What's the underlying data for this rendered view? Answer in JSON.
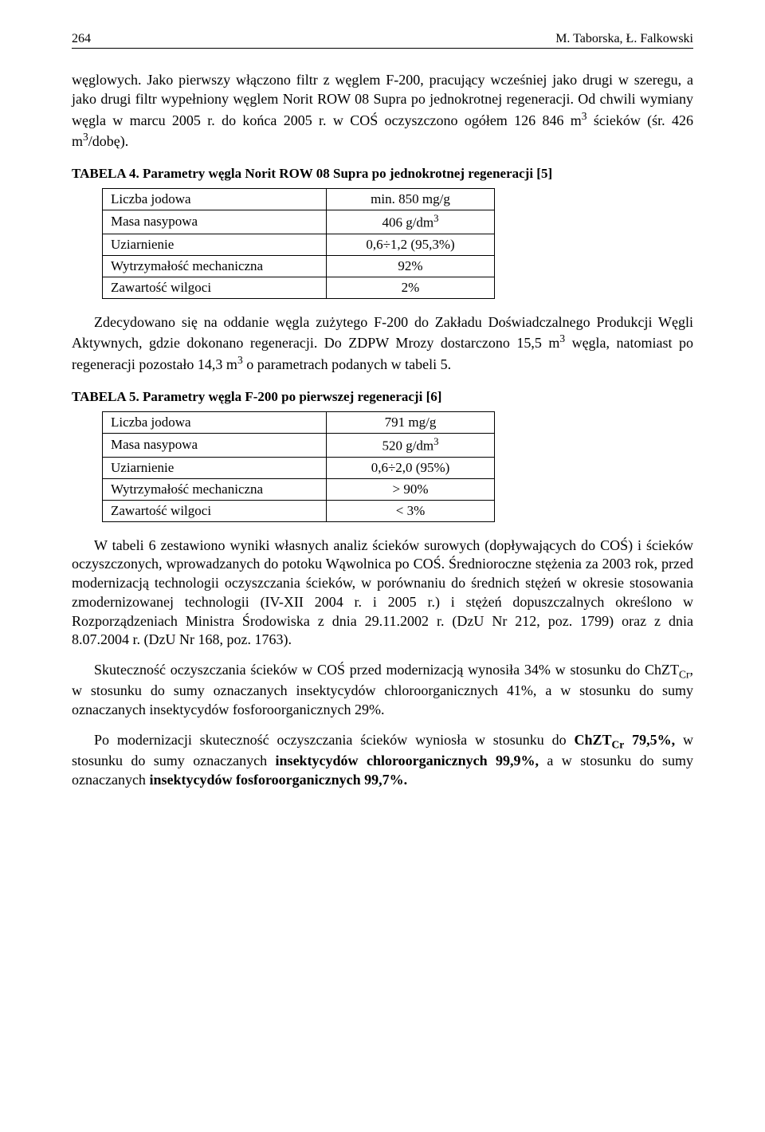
{
  "header": {
    "page_number": "264",
    "authors": "M. Taborska, Ł. Falkowski"
  },
  "p1": "węglowych. Jako pierwszy włączono filtr z węglem F-200, pracujący wcześniej jako drugi w szeregu, a jako drugi filtr wypełniony węglem Norit ROW 08 Supra po jednokrotnej regeneracji. Od chwili wymiany węgla w marcu 2005 r. do końca 2005 r. w COŚ oczyszczono ogółem 126 846 m",
  "p1_sup": "3",
  "p1_tail": " ścieków (śr. 426 m",
  "p1_sup2": "3",
  "p1_tail2": "/dobę).",
  "table4": {
    "caption": "TABELA 4. Parametry węgla Norit ROW 08 Supra po jednokrotnej regeneracji [5]",
    "rows": [
      {
        "label": "Liczba jodowa",
        "value": "min. 850 mg/g"
      },
      {
        "label": "Masa nasypowa",
        "value_pre": "406  g/dm",
        "value_sup": "3"
      },
      {
        "label": "Uziarnienie",
        "value": "0,6÷1,2 (95,3%)"
      },
      {
        "label": "Wytrzymałość mechaniczna",
        "value": "92%"
      },
      {
        "label": "Zawartość wilgoci",
        "value": "2%"
      }
    ]
  },
  "p2_a": "Zdecydowano się na oddanie węgla zużytego F-200 do Zakładu Doświadczalnego Produkcji Węgli Aktywnych, gdzie dokonano regeneracji. Do ZDPW Mrozy dostarczono 15,5 m",
  "p2_sup1": "3",
  "p2_b": " węgla, natomiast po regeneracji pozostało 14,3 m",
  "p2_sup2": "3",
  "p2_c": " o parametrach podanych w tabeli 5.",
  "table5": {
    "caption": "TABELA 5. Parametry węgla F-200 po pierwszej regeneracji [6]",
    "rows": [
      {
        "label": "Liczba jodowa",
        "value": "791 mg/g"
      },
      {
        "label": "Masa nasypowa",
        "value_pre": "520  g/dm",
        "value_sup": "3"
      },
      {
        "label": "Uziarnienie",
        "value": "0,6÷2,0 (95%)"
      },
      {
        "label": "Wytrzymałość mechaniczna",
        "value": "> 90%"
      },
      {
        "label": "Zawartość wilgoci",
        "value": "< 3%"
      }
    ]
  },
  "p3": "W tabeli 6 zestawiono wyniki własnych analiz ścieków surowych (dopływających do COŚ) i ścieków oczyszczonych, wprowadzanych do potoku Wąwolnica po COŚ. Średnioroczne stężenia za 2003 rok, przed modernizacją technologii oczyszczania ścieków, w porównaniu do średnich stężeń w okresie stosowania zmodernizowanej technologii (IV-XII 2004 r. i 2005 r.) i stężeń dopuszczalnych określono w Rozporządzeniach Ministra Środowiska z dnia 29.11.2002 r. (DzU Nr 212, poz. 1799) oraz z dnia 8.07.2004 r. (DzU Nr 168, poz. 1763).",
  "p4_a": "Skuteczność oczyszczania ścieków w COŚ przed modernizacją wynosiła 34% w stosunku do ChZT",
  "p4_sub": "Cr",
  "p4_b": ", w stosunku do sumy oznaczanych insektycydów chloroorganicznych 41%, a w stosunku do sumy oznaczanych insektycydów fosforoorganicznych 29%.",
  "p5_a": "Po modernizacji skuteczność oczyszczania ścieków   wyniosła w stosunku do ",
  "p5_b1": "ChZT",
  "p5_sub": "Cr",
  "p5_b2": " 79,5%,",
  "p5_c": " w stosunku do sumy oznaczanych ",
  "p5_b3": "insektycydów chloroorganicznych 99,9%,",
  "p5_d": " a w stosunku do sumy oznaczanych ",
  "p5_b4": "insektycydów fosforoorganicznych 99,7%."
}
